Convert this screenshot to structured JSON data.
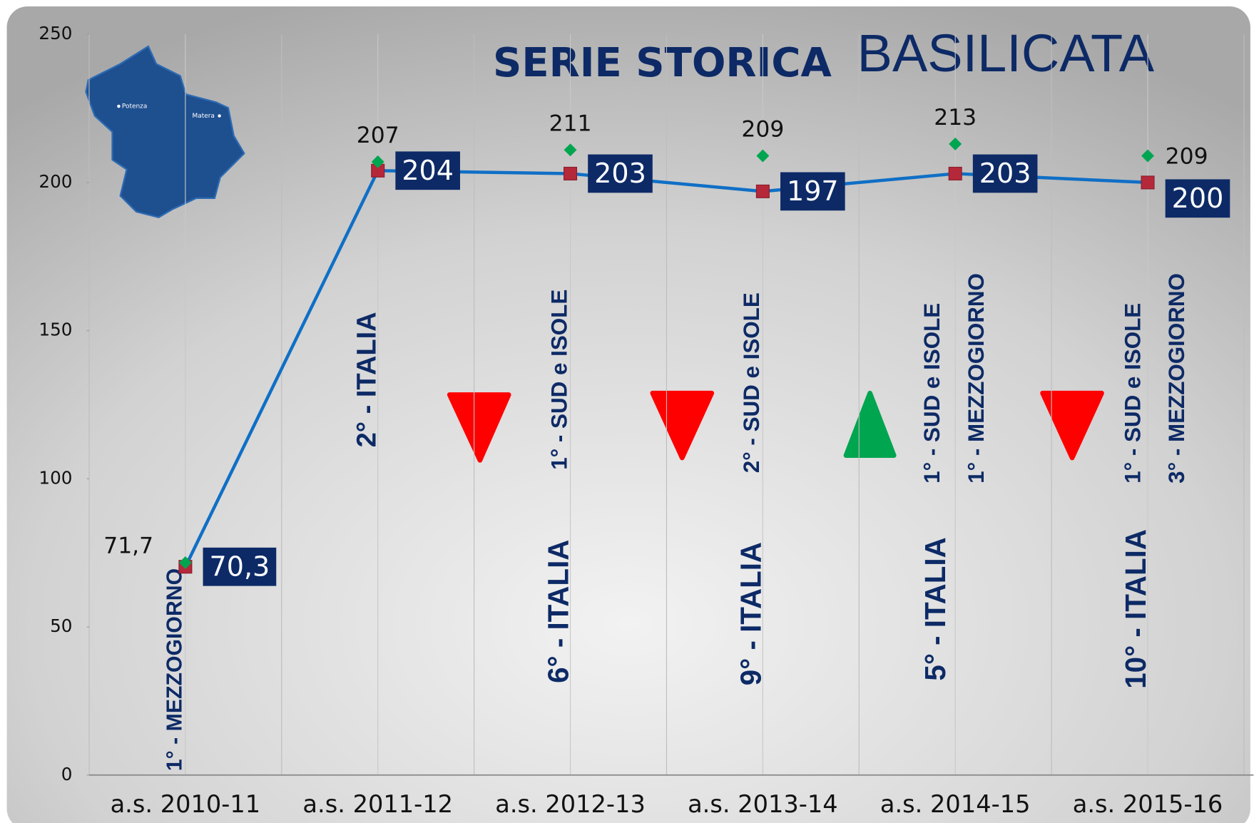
{
  "chart_data": {
    "type": "line",
    "title": "SERIE STORICA",
    "subtitle": "BASILICATA",
    "map_labels": [
      "Potenza",
      "Matera"
    ],
    "categories": [
      "a.s. 2010-11",
      "a.s. 2011-12",
      "a.s. 2012-13",
      "a.s. 2013-14",
      "a.s. 2014-15",
      "a.s. 2015-16"
    ],
    "series": [
      {
        "color": "#0f6fc6",
        "marker": "square",
        "marker_color": "#b5283a",
        "values": [
          70.3,
          204,
          203,
          197,
          203,
          200
        ],
        "value_labels": [
          "70,3",
          "204",
          "203",
          "197",
          "203",
          "200"
        ]
      },
      {
        "color": "#00a550",
        "marker": "diamond",
        "line": false,
        "values": [
          71.7,
          207,
          211,
          209,
          213,
          209
        ],
        "value_labels": [
          "71,7",
          "207",
          "211",
          "209",
          "213",
          "209"
        ]
      }
    ],
    "annotations": [
      [
        "1° - MEZZOGIORNO"
      ],
      [
        "2° - ITALIA"
      ],
      [
        "1° - SUD e ISOLE",
        "6° - ITALIA"
      ],
      [
        "2° - SUD e ISOLE",
        "9° - ITALIA"
      ],
      [
        "1° - SUD e ISOLE",
        "1° - MEZZOGIORNO",
        "5° - ITALIA"
      ],
      [
        "1° - SUD e ISOLE",
        "3° - MEZZOGIORNO",
        "10° - ITALIA"
      ]
    ],
    "ylim": [
      0,
      250
    ],
    "yticks": [
      0,
      50,
      100,
      150,
      200,
      250
    ],
    "grid": true
  }
}
